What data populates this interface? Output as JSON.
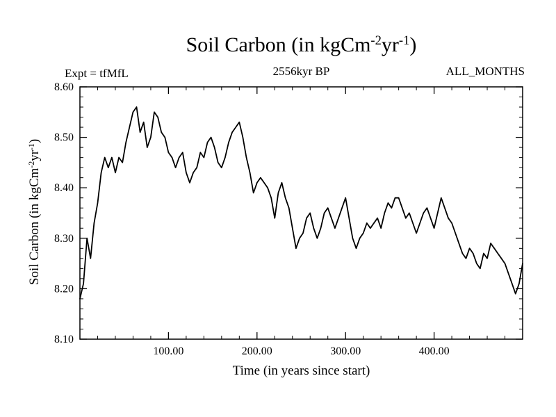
{
  "header": {
    "expt": "Expt = tfMfL",
    "subtitle": "2556kyr BP",
    "months": "ALL_MONTHS"
  },
  "title_parts": {
    "pre": "Soil Carbon (in kgCm",
    "sup1": "-2",
    "mid": "yr",
    "sup2": "-1",
    "post": ")"
  },
  "ylabel_parts": {
    "pre": "Soil Carbon (in kgCm",
    "sup1": "-2",
    "mid": "yr",
    "sup2": "-1",
    "post": ")"
  },
  "xlabel": "Time (in years since start)",
  "chart_data": {
    "type": "line",
    "title": "Soil Carbon (in kgCm-2yr-1)",
    "subtitle": "2556kyr BP",
    "annotations": [
      "Expt = tfMfL",
      "ALL_MONTHS"
    ],
    "xlabel": "Time (in years since start)",
    "ylabel": "Soil Carbon (in kgCm-2yr-1)",
    "xlim": [
      0,
      500
    ],
    "ylim": [
      8.1,
      8.6
    ],
    "grid": false,
    "legend": "none",
    "line_color": "#000000",
    "x_ticks": [
      {
        "v": 100,
        "label": "100.00"
      },
      {
        "v": 200,
        "label": "200.00"
      },
      {
        "v": 300,
        "label": "300.00"
      },
      {
        "v": 400,
        "label": "400.00"
      }
    ],
    "y_ticks": [
      {
        "v": 8.1,
        "label": "8.10"
      },
      {
        "v": 8.2,
        "label": "8.20"
      },
      {
        "v": 8.3,
        "label": "8.30"
      },
      {
        "v": 8.4,
        "label": "8.40"
      },
      {
        "v": 8.5,
        "label": "8.50"
      },
      {
        "v": 8.6,
        "label": "8.60"
      }
    ],
    "x_minor_step": 20,
    "y_minor_step": 0.02,
    "x_start": 0,
    "x_step": 4,
    "values": [
      8.18,
      8.21,
      8.3,
      8.26,
      8.33,
      8.37,
      8.43,
      8.46,
      8.44,
      8.46,
      8.43,
      8.46,
      8.45,
      8.49,
      8.52,
      8.55,
      8.56,
      8.51,
      8.53,
      8.48,
      8.5,
      8.55,
      8.54,
      8.51,
      8.5,
      8.47,
      8.46,
      8.44,
      8.46,
      8.47,
      8.43,
      8.41,
      8.43,
      8.44,
      8.47,
      8.46,
      8.49,
      8.5,
      8.48,
      8.45,
      8.44,
      8.46,
      8.49,
      8.51,
      8.52,
      8.53,
      8.5,
      8.46,
      8.43,
      8.39,
      8.41,
      8.42,
      8.41,
      8.4,
      8.38,
      8.34,
      8.39,
      8.41,
      8.38,
      8.36,
      8.32,
      8.28,
      8.3,
      8.31,
      8.34,
      8.35,
      8.32,
      8.3,
      8.32,
      8.35,
      8.36,
      8.34,
      8.32,
      8.34,
      8.36,
      8.38,
      8.34,
      8.3,
      8.28,
      8.3,
      8.31,
      8.33,
      8.32,
      8.33,
      8.34,
      8.32,
      8.35,
      8.37,
      8.36,
      8.38,
      8.38,
      8.36,
      8.34,
      8.35,
      8.33,
      8.31,
      8.33,
      8.35,
      8.36,
      8.34,
      8.32,
      8.35,
      8.38,
      8.36,
      8.34,
      8.33,
      8.31,
      8.29,
      8.27,
      8.26,
      8.28,
      8.27,
      8.25,
      8.24,
      8.27,
      8.26,
      8.29,
      8.28,
      8.27,
      8.26,
      8.25,
      8.23,
      8.21,
      8.19,
      8.21,
      8.25
    ]
  }
}
